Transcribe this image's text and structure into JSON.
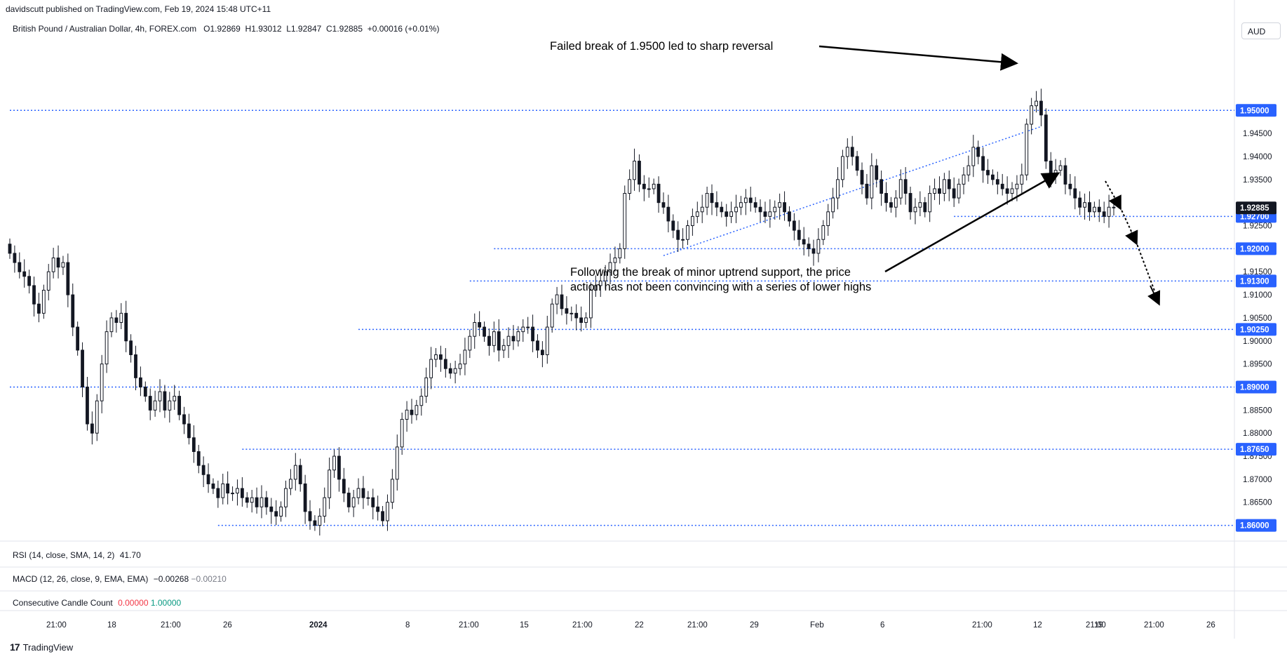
{
  "header": {
    "publisher": "davidscutt published on TradingView.com, Feb 19, 2024 15:48 UTC+11",
    "symbol": "British Pound / Australian Dollar, 4h, FOREX.com",
    "open": "O1.92869",
    "high": "H1.93012",
    "low": "L1.92847",
    "close": "C1.92885",
    "change": "+0.00016 (+0.01%)",
    "currency": "AUD"
  },
  "chart_data": {
    "type": "candlestick",
    "title": "British Pound / Australian Dollar, 4h, FOREX.com",
    "ylim": [
      1.8575,
      1.9645
    ],
    "y_ticks": [
      "1.94500",
      "1.94000",
      "1.93500",
      "1.92500",
      "1.91500",
      "1.91000",
      "1.90500",
      "1.90000",
      "1.89500",
      "1.88500",
      "1.88000",
      "1.87500",
      "1.87000",
      "1.86500"
    ],
    "x_ticks": [
      "21:00",
      "18",
      "21:00",
      "26",
      "2024",
      "8",
      "21:00",
      "15",
      "21:00",
      "22",
      "21:00",
      "29",
      "Feb",
      "6",
      "21:00",
      "12",
      "21:00",
      "19",
      "21:00",
      "26"
    ],
    "last_price": {
      "value": 1.92885,
      "label": "1.92885",
      "color": "#131722"
    },
    "levels": [
      {
        "value": 1.95,
        "label": "1.95000",
        "from_idx": 0
      },
      {
        "value": 1.927,
        "label": "1.92700",
        "from_idx": 195
      },
      {
        "value": 1.92,
        "label": "1.92000",
        "from_idx": 100
      },
      {
        "value": 1.913,
        "label": "1.91300",
        "from_idx": 95
      },
      {
        "value": 1.9025,
        "label": "1.90250",
        "from_idx": 72
      },
      {
        "value": 1.89,
        "label": "1.89000",
        "from_idx": 0
      },
      {
        "value": 1.8765,
        "label": "1.87650",
        "from_idx": 48
      },
      {
        "value": 1.86,
        "label": "1.86000",
        "from_idx": 43
      }
    ],
    "trendline": {
      "from": {
        "idx": 135,
        "price": 1.9185
      },
      "to": {
        "idx": 213,
        "price": 1.9465
      }
    },
    "candles_close": [
      1.919,
      1.917,
      1.915,
      1.914,
      1.912,
      1.908,
      1.906,
      1.911,
      1.915,
      1.918,
      1.916,
      1.917,
      1.91,
      1.903,
      1.898,
      1.89,
      1.882,
      1.88,
      1.887,
      1.895,
      1.902,
      1.905,
      1.904,
      1.906,
      1.9,
      1.897,
      1.892,
      1.89,
      1.888,
      1.885,
      1.887,
      1.889,
      1.885,
      1.887,
      1.888,
      1.884,
      1.882,
      1.879,
      1.876,
      1.873,
      1.871,
      1.869,
      1.868,
      1.866,
      1.869,
      1.867,
      1.867,
      1.868,
      1.866,
      1.865,
      1.866,
      1.864,
      1.866,
      1.864,
      1.863,
      1.862,
      1.864,
      1.868,
      1.87,
      1.873,
      1.869,
      1.863,
      1.861,
      1.86,
      1.862,
      1.866,
      1.872,
      1.875,
      1.87,
      1.867,
      1.864,
      1.866,
      1.868,
      1.866,
      1.866,
      1.864,
      1.863,
      1.861,
      1.865,
      1.87,
      1.877,
      1.883,
      1.885,
      1.884,
      1.886,
      1.888,
      1.892,
      1.896,
      1.897,
      1.896,
      1.894,
      1.893,
      1.894,
      1.895,
      1.898,
      1.901,
      1.904,
      1.903,
      1.901,
      1.899,
      1.902,
      1.898,
      1.899,
      1.901,
      1.9,
      1.902,
      1.903,
      1.903,
      1.9,
      1.898,
      1.897,
      1.903,
      1.908,
      1.91,
      1.907,
      1.906,
      1.906,
      1.905,
      1.904,
      1.905,
      1.911,
      1.912,
      1.913,
      1.915,
      1.917,
      1.918,
      1.92,
      1.932,
      1.935,
      1.939,
      1.934,
      1.933,
      1.933,
      1.934,
      1.93,
      1.929,
      1.926,
      1.924,
      1.922,
      1.922,
      1.925,
      1.927,
      1.928,
      1.929,
      1.932,
      1.93,
      1.929,
      1.928,
      1.927,
      1.928,
      1.929,
      1.93,
      1.931,
      1.93,
      1.929,
      1.928,
      1.927,
      1.928,
      1.929,
      1.93,
      1.928,
      1.926,
      1.924,
      1.922,
      1.921,
      1.92,
      1.919,
      1.922,
      1.925,
      1.928,
      1.931,
      1.935,
      1.94,
      1.942,
      1.94,
      1.937,
      1.934,
      1.931,
      1.938,
      1.935,
      1.932,
      1.93,
      1.929,
      1.931,
      1.935,
      1.932,
      1.928,
      1.929,
      1.93,
      1.928,
      1.932,
      1.933,
      1.932,
      1.935,
      1.933,
      1.931,
      1.934,
      1.936,
      1.938,
      1.942,
      1.94,
      1.937,
      1.936,
      1.935,
      1.934,
      1.933,
      1.932,
      1.933,
      1.934,
      1.936,
      1.947,
      1.951,
      1.952,
      1.949,
      1.939,
      1.936,
      1.937,
      1.938,
      1.934,
      1.933,
      1.931,
      1.929,
      1.93,
      1.928,
      1.929,
      1.928,
      1.927,
      1.929,
      1.9289
    ]
  },
  "annotations": {
    "top": "Failed break of 1.9500 led to sharp reversal",
    "middle_line1": "Following the break of minor uptrend support, the price",
    "middle_line2": "action has not been convincing with a series of lower highs"
  },
  "indicators": {
    "rsi": {
      "label": "RSI (14, close, SMA, 14, 2)",
      "value": "41.70"
    },
    "macd": {
      "label": "MACD (12, 26, close, 9, EMA, EMA)",
      "value1": "−0.00268",
      "value2": "−0.00210"
    },
    "ccc": {
      "label": "Consecutive Candle Count",
      "value1": "0.00000",
      "value2": "1.00000"
    }
  },
  "footer": {
    "brand": "TradingView"
  },
  "colors": {
    "up": "#ffffff",
    "down": "#131722",
    "level": "#2962ff",
    "badge": "#2962ff",
    "grid": "#f0f3fa",
    "text": "#131722"
  }
}
